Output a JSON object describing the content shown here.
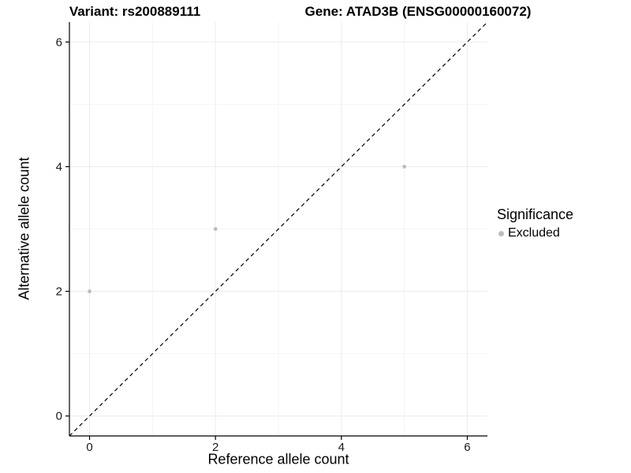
{
  "chart_data": {
    "type": "scatter",
    "title_left": "Variant: rs200889111",
    "title_right": "Gene: ATAD3B (ENSG00000160072)",
    "xlabel": "Reference allele count",
    "ylabel": "Alternative allele count",
    "xlim": [
      -0.32,
      6.32
    ],
    "ylim": [
      -0.32,
      6.32
    ],
    "xticks": [
      0,
      2,
      4,
      6
    ],
    "yticks": [
      0,
      2,
      4,
      6
    ],
    "minor_ticks": [
      1,
      3,
      5
    ],
    "grid": "major-and-minor",
    "series": [
      {
        "name": "Excluded",
        "color": "#bebebe",
        "points": [
          [
            0,
            2
          ],
          [
            2,
            3
          ],
          [
            5,
            4
          ]
        ]
      }
    ],
    "reference_line": {
      "shape": "identity-y-equals-x",
      "style": "dashed",
      "color": "#000000",
      "from": [
        -0.32,
        -0.32
      ],
      "to": [
        6.32,
        6.32
      ]
    },
    "legend": {
      "position": "right",
      "title": "Significance",
      "entries": [
        {
          "label": "Excluded",
          "color": "#bebebe"
        }
      ]
    }
  },
  "colors": {
    "background": "#ffffff",
    "point": "#bebebe",
    "grid_major": "#ececec",
    "grid_minor": "#f5f5f5",
    "axis": "#000000",
    "text": "#1a1a1a"
  }
}
